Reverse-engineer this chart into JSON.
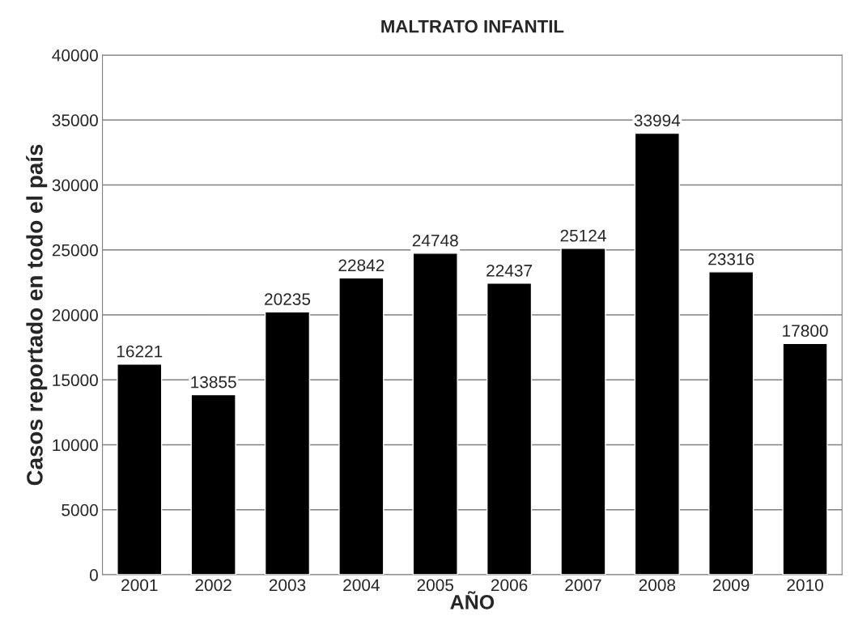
{
  "chart_data": {
    "type": "bar",
    "title": "MALTRATO INFANTIL",
    "xlabel": "AÑO",
    "ylabel": "Casos reportado en todo el país",
    "categories": [
      "2001",
      "2002",
      "2003",
      "2004",
      "2005",
      "2006",
      "2007",
      "2008",
      "2009",
      "2010"
    ],
    "values": [
      16221,
      13855,
      20235,
      22842,
      24748,
      22437,
      25124,
      33994,
      23316,
      17800
    ],
    "color": "#000000",
    "ylim": [
      0,
      40000
    ],
    "yticks": [
      0,
      5000,
      10000,
      15000,
      20000,
      25000,
      30000,
      35000,
      40000
    ],
    "grid": "y",
    "data_labels": true
  }
}
